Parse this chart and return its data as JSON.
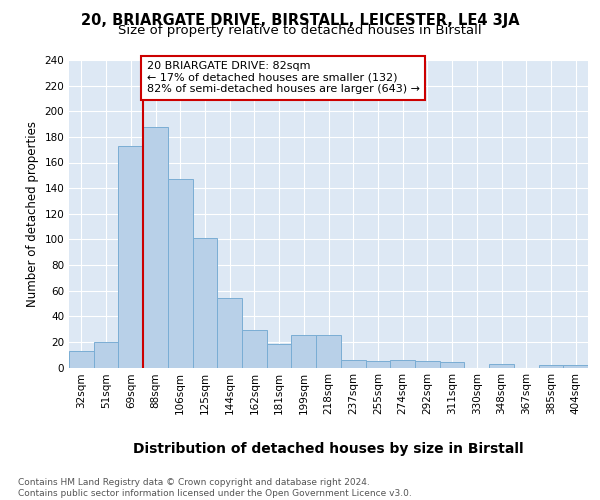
{
  "title1": "20, BRIARGATE DRIVE, BIRSTALL, LEICESTER, LE4 3JA",
  "title2": "Size of property relative to detached houses in Birstall",
  "xlabel": "Distribution of detached houses by size in Birstall",
  "ylabel": "Number of detached properties",
  "categories": [
    "32sqm",
    "51sqm",
    "69sqm",
    "88sqm",
    "106sqm",
    "125sqm",
    "144sqm",
    "162sqm",
    "181sqm",
    "199sqm",
    "218sqm",
    "237sqm",
    "255sqm",
    "274sqm",
    "292sqm",
    "311sqm",
    "330sqm",
    "348sqm",
    "367sqm",
    "385sqm",
    "404sqm"
  ],
  "values": [
    13,
    20,
    173,
    188,
    147,
    101,
    54,
    29,
    18,
    25,
    25,
    6,
    5,
    6,
    5,
    4,
    0,
    3,
    0,
    2,
    2
  ],
  "bar_color": "#b8d0e8",
  "bar_edge_color": "#7aadd4",
  "vline_x_index": 3,
  "vline_color": "#cc0000",
  "annotation_text": "20 BRIARGATE DRIVE: 82sqm\n← 17% of detached houses are smaller (132)\n82% of semi-detached houses are larger (643) →",
  "annotation_box_facecolor": "#ffffff",
  "annotation_box_edgecolor": "#cc0000",
  "ylim": [
    0,
    240
  ],
  "yticks": [
    0,
    20,
    40,
    60,
    80,
    100,
    120,
    140,
    160,
    180,
    200,
    220,
    240
  ],
  "bg_color": "#dde8f4",
  "grid_color": "#ffffff",
  "fig_bg_color": "#ffffff",
  "footer_text": "Contains HM Land Registry data © Crown copyright and database right 2024.\nContains public sector information licensed under the Open Government Licence v3.0.",
  "title1_fontsize": 10.5,
  "title2_fontsize": 9.5,
  "xlabel_fontsize": 10,
  "ylabel_fontsize": 8.5,
  "tick_fontsize": 7.5,
  "annotation_fontsize": 8,
  "footer_fontsize": 6.5
}
